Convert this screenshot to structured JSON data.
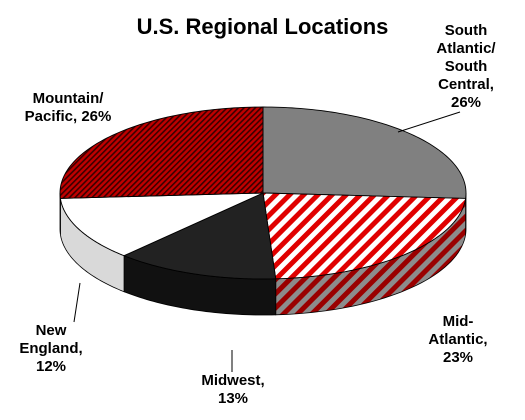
{
  "chart_data": {
    "type": "pie",
    "title": "U.S. Regional Locations",
    "slices": [
      {
        "label_lines": [
          "South",
          "Atlantic/",
          "South",
          "Central,",
          "26%"
        ],
        "value": 26,
        "color": "#808080",
        "pattern": "solid"
      },
      {
        "label_lines": [
          "Mid-",
          "Atlantic,",
          "23%"
        ],
        "value": 23,
        "color": "#e00000",
        "pattern": "wide-diagonal"
      },
      {
        "label_lines": [
          "Midwest,",
          "13%"
        ],
        "value": 13,
        "color": "#222222",
        "pattern": "solid"
      },
      {
        "label_lines": [
          "New",
          "England,",
          "12%"
        ],
        "value": 12,
        "color": "#ffffff",
        "pattern": "solid"
      },
      {
        "label_lines": [
          "Mountain/",
          "Pacific, 26%"
        ],
        "value": 26,
        "color": "#c00000",
        "pattern": "fine-diagonal"
      }
    ],
    "style": "3d-tilted",
    "legend": "none"
  }
}
